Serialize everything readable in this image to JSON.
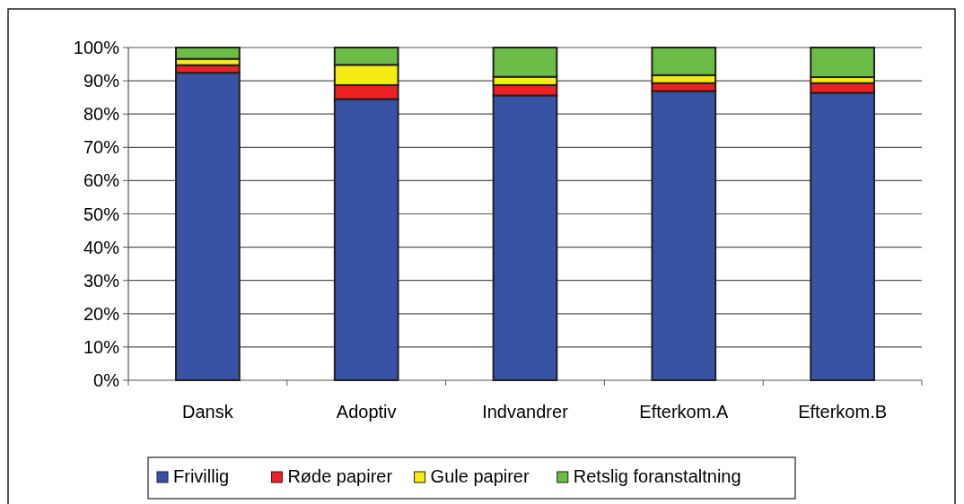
{
  "chart_data": {
    "type": "bar",
    "stacked": true,
    "categories": [
      "Dansk",
      "Adoptiv",
      "Indvandrer",
      "Efterkom.A",
      "Efterkom.B"
    ],
    "series": [
      {
        "name": "Frivillig",
        "color": "#3953a4",
        "values": [
          92.4,
          84.5,
          85.6,
          86.9,
          86.4
        ]
      },
      {
        "name": "Røde papirer",
        "color": "#ed2024",
        "values": [
          2.3,
          4.2,
          3.1,
          2.4,
          2.9
        ]
      },
      {
        "name": "Gule papirer",
        "color": "#f5ec13",
        "values": [
          1.9,
          6.1,
          2.5,
          2.4,
          1.8
        ]
      },
      {
        "name": "Retslig foranstaltning",
        "color": "#6bbd45",
        "values": [
          3.4,
          5.2,
          8.8,
          8.3,
          8.9
        ]
      }
    ],
    "ylim": [
      0,
      100
    ],
    "yticks": [
      {
        "value": 0,
        "label": "0%"
      },
      {
        "value": 10,
        "label": "10%"
      },
      {
        "value": 20,
        "label": "20%"
      },
      {
        "value": 30,
        "label": "30%"
      },
      {
        "value": 40,
        "label": "40%"
      },
      {
        "value": 50,
        "label": "50%"
      },
      {
        "value": 60,
        "label": "60%"
      },
      {
        "value": 70,
        "label": "70%"
      },
      {
        "value": 80,
        "label": "80%"
      },
      {
        "value": 90,
        "label": "90%"
      },
      {
        "value": 100,
        "label": "100%"
      }
    ],
    "grid": "y",
    "legend": "bottom"
  }
}
